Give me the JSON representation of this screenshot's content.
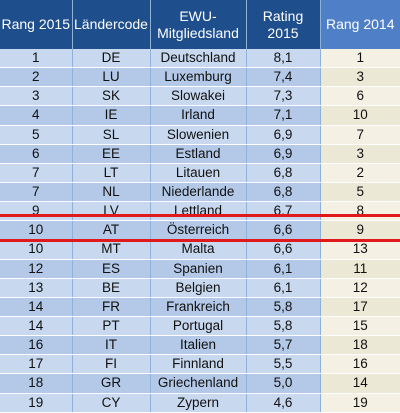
{
  "headers": {
    "rank_2015": "Rang 2015",
    "country_code": "Ländercode",
    "member_line1": "EWU-",
    "member_line2": "Mitgliedsland",
    "rating_2015": "Rating 2015",
    "rank_2014": "Rang 2014"
  },
  "highlight_color": "#e0191c",
  "header_color": "#1f4e8c",
  "highlighted_row": "AT",
  "rows": [
    {
      "rank2015": "1",
      "code": "DE",
      "country": "Deutschland",
      "rating": "8,1",
      "rank2014": "1"
    },
    {
      "rank2015": "2",
      "code": "LU",
      "country": "Luxemburg",
      "rating": "7,4",
      "rank2014": "3"
    },
    {
      "rank2015": "3",
      "code": "SK",
      "country": "Slowakei",
      "rating": "7,3",
      "rank2014": "6"
    },
    {
      "rank2015": "4",
      "code": "IE",
      "country": "Irland",
      "rating": "7,1",
      "rank2014": "10"
    },
    {
      "rank2015": "5",
      "code": "SL",
      "country": "Slowenien",
      "rating": "6,9",
      "rank2014": "7"
    },
    {
      "rank2015": "6",
      "code": "EE",
      "country": "Estland",
      "rating": "6,9",
      "rank2014": "3"
    },
    {
      "rank2015": "7",
      "code": "LT",
      "country": "Litauen",
      "rating": "6,8",
      "rank2014": "2"
    },
    {
      "rank2015": "7",
      "code": "NL",
      "country": "Niederlande",
      "rating": "6,8",
      "rank2014": "5"
    },
    {
      "rank2015": "9",
      "code": "LV",
      "country": "Lettland",
      "rating": "6,7",
      "rank2014": "8"
    },
    {
      "rank2015": "10",
      "code": "AT",
      "country": "Österreich",
      "rating": "6,6",
      "rank2014": "9"
    },
    {
      "rank2015": "10",
      "code": "MT",
      "country": "Malta",
      "rating": "6,6",
      "rank2014": "13"
    },
    {
      "rank2015": "12",
      "code": "ES",
      "country": "Spanien",
      "rating": "6,1",
      "rank2014": "11"
    },
    {
      "rank2015": "13",
      "code": "BE",
      "country": "Belgien",
      "rating": "6,1",
      "rank2014": "12"
    },
    {
      "rank2015": "14",
      "code": "FR",
      "country": "Frankreich",
      "rating": "5,8",
      "rank2014": "17"
    },
    {
      "rank2015": "14",
      "code": "PT",
      "country": "Portugal",
      "rating": "5,8",
      "rank2014": "15"
    },
    {
      "rank2015": "16",
      "code": "IT",
      "country": "Italien",
      "rating": "5,7",
      "rank2014": "18"
    },
    {
      "rank2015": "17",
      "code": "FI",
      "country": "Finnland",
      "rating": "5,5",
      "rank2014": "16"
    },
    {
      "rank2015": "18",
      "code": "GR",
      "country": "Griechenland",
      "rating": "5,0",
      "rank2014": "14"
    },
    {
      "rank2015": "19",
      "code": "CY",
      "country": "Zypern",
      "rating": "4,6",
      "rank2014": "19"
    }
  ]
}
